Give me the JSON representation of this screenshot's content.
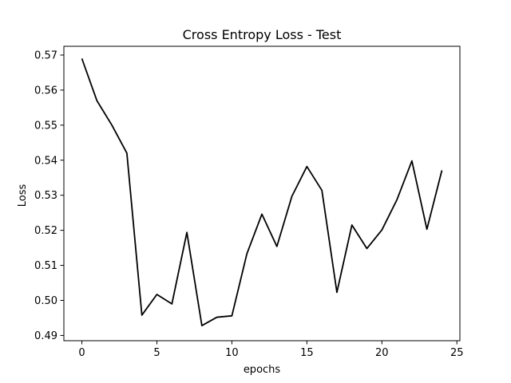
{
  "chart_data": {
    "type": "line",
    "title": "Cross Entropy Loss - Test",
    "xlabel": "epochs",
    "ylabel": "Loss",
    "xlim": [
      -1.2,
      25.2
    ],
    "ylim": [
      0.4885,
      0.5725
    ],
    "xticks": [
      0,
      5,
      10,
      15,
      20,
      25
    ],
    "yticks": [
      0.49,
      0.5,
      0.51,
      0.52,
      0.53,
      0.54,
      0.55,
      0.56,
      0.57
    ],
    "xtick_labels": [
      "0",
      "5",
      "10",
      "15",
      "20",
      "25"
    ],
    "ytick_labels": [
      "0.49",
      "0.50",
      "0.51",
      "0.52",
      "0.53",
      "0.54",
      "0.55",
      "0.56",
      "0.57"
    ],
    "grid": false,
    "line_color": "#000000",
    "x": [
      0,
      1,
      2,
      3,
      4,
      5,
      6,
      7,
      8,
      9,
      10,
      11,
      12,
      13,
      14,
      15,
      16,
      17,
      18,
      19,
      20,
      21,
      22,
      23,
      24
    ],
    "y": [
      0.569,
      0.557,
      0.55,
      0.542,
      0.4958,
      0.5017,
      0.499,
      0.5194,
      0.4928,
      0.4952,
      0.4956,
      0.5133,
      0.5246,
      0.5154,
      0.5297,
      0.5382,
      0.5314,
      0.5023,
      0.5215,
      0.5148,
      0.5201,
      0.5287,
      0.5398,
      0.5203,
      0.5371
    ]
  }
}
